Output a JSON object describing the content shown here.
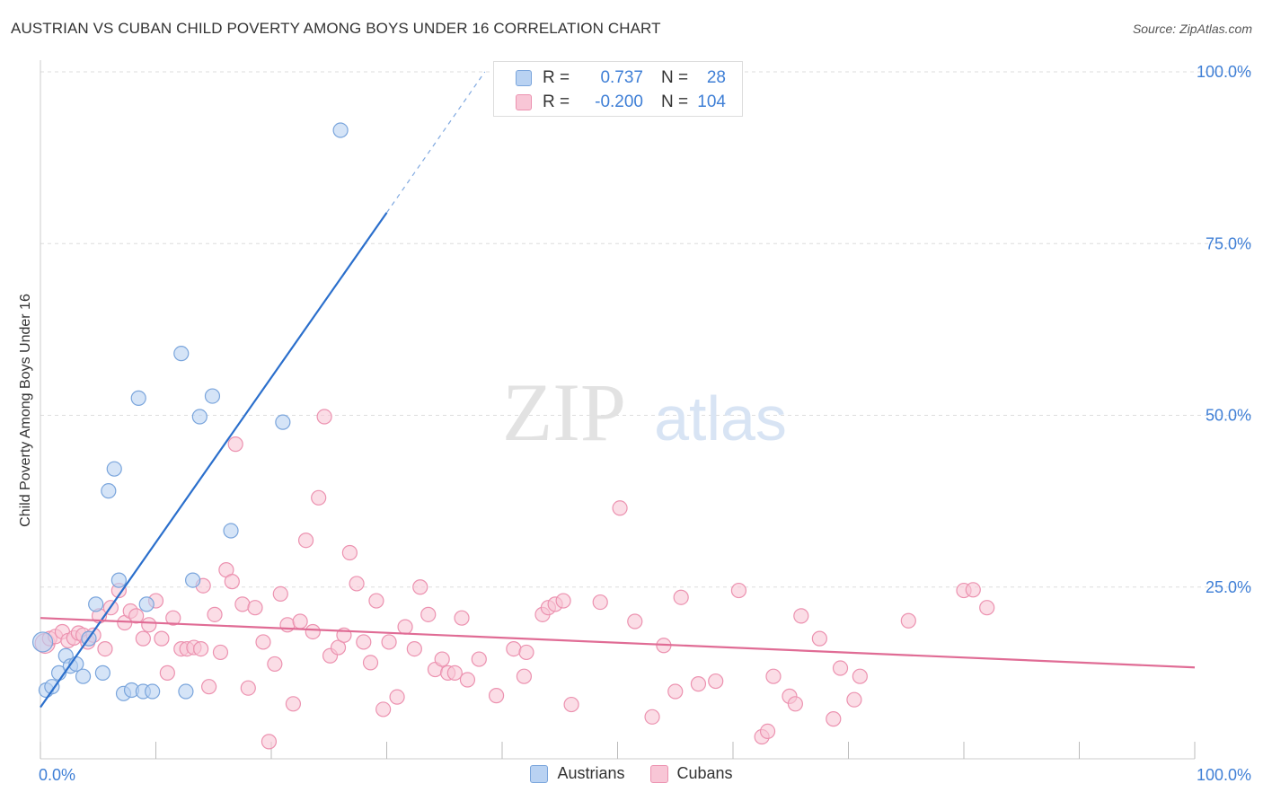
{
  "title": "AUSTRIAN VS CUBAN CHILD POVERTY AMONG BOYS UNDER 16 CORRELATION CHART",
  "source": "Source: ZipAtlas.com",
  "watermark": {
    "zip": "ZIP",
    "atlas": "atlas"
  },
  "legend_top": [
    {
      "r_label": "R =",
      "r_value": "0.737",
      "n_label": "N =",
      "n_value": "28"
    },
    {
      "r_label": "R =",
      "r_value": "-0.200",
      "n_label": "N =",
      "n_value": "104"
    }
  ],
  "legend_bottom": {
    "austrians": "Austrians",
    "cubans": "Cubans"
  },
  "colors": {
    "austrians_fill": "#b9d2f2",
    "austrians_stroke": "#7aa5dc",
    "austrians_line": "#2b6fcc",
    "cubans_fill": "#f8c6d6",
    "cubans_stroke": "#ec92b0",
    "cubans_line": "#e06c95",
    "axis_text": "#3f7fd6",
    "grid": "#dddddd"
  },
  "chart_data": {
    "type": "scatter",
    "title": "AUSTRIAN VS CUBAN CHILD POVERTY AMONG BOYS UNDER 16 CORRELATION CHART",
    "xlabel": "",
    "ylabel": "Child Poverty Among Boys Under 16",
    "xlim": [
      0,
      100
    ],
    "ylim": [
      0,
      100
    ],
    "x_tick_labels": [
      "0.0%",
      "100.0%"
    ],
    "y_ticks": [
      25,
      50,
      75,
      100
    ],
    "y_tick_labels": [
      "25.0%",
      "50.0%",
      "75.0%",
      "100.0%"
    ],
    "grid": true,
    "legend_position": "top-center",
    "series": [
      {
        "name": "Austrians",
        "points": [
          [
            0.2,
            17.0
          ],
          [
            0.5,
            10.0
          ],
          [
            1.0,
            10.5
          ],
          [
            1.6,
            12.5
          ],
          [
            2.2,
            15.0
          ],
          [
            2.6,
            13.5
          ],
          [
            3.1,
            13.8
          ],
          [
            3.7,
            12.0
          ],
          [
            4.2,
            17.5
          ],
          [
            4.8,
            22.5
          ],
          [
            5.4,
            12.5
          ],
          [
            5.9,
            39.0
          ],
          [
            6.4,
            42.2
          ],
          [
            6.8,
            26.0
          ],
          [
            7.2,
            9.5
          ],
          [
            7.9,
            10.0
          ],
          [
            8.5,
            52.5
          ],
          [
            8.9,
            9.8
          ],
          [
            9.2,
            22.5
          ],
          [
            9.7,
            9.8
          ],
          [
            12.2,
            59.0
          ],
          [
            12.6,
            9.8
          ],
          [
            13.2,
            26.0
          ],
          [
            13.8,
            49.8
          ],
          [
            14.9,
            52.8
          ],
          [
            16.5,
            33.2
          ],
          [
            21.0,
            49.0
          ],
          [
            26.0,
            91.5
          ]
        ],
        "trend": {
          "x": [
            0,
            30
          ],
          "y": [
            7.5,
            79.5
          ],
          "dashed_extension_to": [
            38.5,
            100
          ]
        }
      },
      {
        "name": "Cubans",
        "points": [
          [
            0.4,
            16.8
          ],
          [
            0.8,
            17.5
          ],
          [
            1.3,
            17.8
          ],
          [
            1.9,
            18.5
          ],
          [
            2.4,
            17.2
          ],
          [
            2.9,
            17.6
          ],
          [
            3.3,
            18.3
          ],
          [
            3.7,
            18.0
          ],
          [
            4.1,
            17.0
          ],
          [
            4.6,
            18.0
          ],
          [
            5.1,
            20.8
          ],
          [
            5.6,
            16.0
          ],
          [
            6.1,
            22.0
          ],
          [
            6.8,
            24.5
          ],
          [
            7.3,
            19.8
          ],
          [
            7.8,
            21.5
          ],
          [
            8.3,
            20.8
          ],
          [
            8.9,
            17.5
          ],
          [
            9.4,
            19.5
          ],
          [
            10.0,
            23.0
          ],
          [
            10.5,
            17.5
          ],
          [
            11.0,
            12.5
          ],
          [
            11.5,
            20.5
          ],
          [
            12.2,
            16.0
          ],
          [
            12.7,
            16.0
          ],
          [
            13.3,
            16.2
          ],
          [
            13.9,
            16.0
          ],
          [
            14.1,
            25.2
          ],
          [
            14.6,
            10.5
          ],
          [
            15.1,
            21.0
          ],
          [
            15.6,
            15.5
          ],
          [
            16.1,
            27.5
          ],
          [
            16.6,
            25.8
          ],
          [
            16.9,
            45.8
          ],
          [
            17.5,
            22.5
          ],
          [
            18.0,
            10.3
          ],
          [
            18.6,
            22.0
          ],
          [
            19.3,
            17.0
          ],
          [
            19.8,
            2.5
          ],
          [
            20.3,
            13.8
          ],
          [
            20.8,
            24.0
          ],
          [
            21.4,
            19.5
          ],
          [
            21.9,
            8.0
          ],
          [
            22.5,
            20.0
          ],
          [
            23.0,
            31.8
          ],
          [
            23.6,
            18.5
          ],
          [
            24.1,
            38.0
          ],
          [
            24.6,
            49.8
          ],
          [
            25.1,
            15.0
          ],
          [
            25.8,
            16.2
          ],
          [
            26.3,
            18.0
          ],
          [
            26.8,
            30.0
          ],
          [
            27.4,
            25.5
          ],
          [
            28.0,
            17.0
          ],
          [
            28.6,
            14.0
          ],
          [
            29.1,
            23.0
          ],
          [
            29.7,
            7.2
          ],
          [
            30.2,
            17.0
          ],
          [
            30.9,
            9.0
          ],
          [
            31.6,
            19.2
          ],
          [
            32.4,
            16.0
          ],
          [
            32.9,
            25.0
          ],
          [
            33.6,
            21.0
          ],
          [
            34.2,
            13.0
          ],
          [
            34.8,
            14.5
          ],
          [
            35.3,
            12.5
          ],
          [
            35.9,
            12.5
          ],
          [
            36.5,
            20.5
          ],
          [
            37.0,
            11.5
          ],
          [
            38.0,
            14.5
          ],
          [
            39.5,
            9.2
          ],
          [
            41.0,
            16.0
          ],
          [
            41.9,
            12.0
          ],
          [
            42.1,
            15.5
          ],
          [
            43.5,
            21.0
          ],
          [
            44.0,
            22.0
          ],
          [
            44.6,
            22.5
          ],
          [
            45.3,
            23.0
          ],
          [
            46.0,
            7.9
          ],
          [
            48.5,
            22.8
          ],
          [
            50.2,
            36.5
          ],
          [
            51.5,
            20.0
          ],
          [
            53.0,
            6.1
          ],
          [
            54.0,
            16.5
          ],
          [
            55.0,
            9.8
          ],
          [
            55.5,
            23.5
          ],
          [
            57.0,
            10.9
          ],
          [
            58.5,
            11.3
          ],
          [
            60.5,
            24.5
          ],
          [
            62.5,
            3.2
          ],
          [
            63.0,
            4.0
          ],
          [
            63.5,
            12.0
          ],
          [
            64.9,
            9.1
          ],
          [
            65.4,
            8.0
          ],
          [
            65.9,
            20.8
          ],
          [
            67.5,
            17.5
          ],
          [
            68.7,
            5.8
          ],
          [
            69.3,
            13.2
          ],
          [
            70.5,
            8.6
          ],
          [
            71.0,
            12.0
          ],
          [
            75.2,
            20.1
          ],
          [
            80.0,
            24.5
          ],
          [
            80.8,
            24.6
          ],
          [
            82.0,
            22.0
          ]
        ],
        "trend": {
          "x": [
            0,
            100
          ],
          "y": [
            20.5,
            13.3
          ]
        }
      }
    ]
  }
}
